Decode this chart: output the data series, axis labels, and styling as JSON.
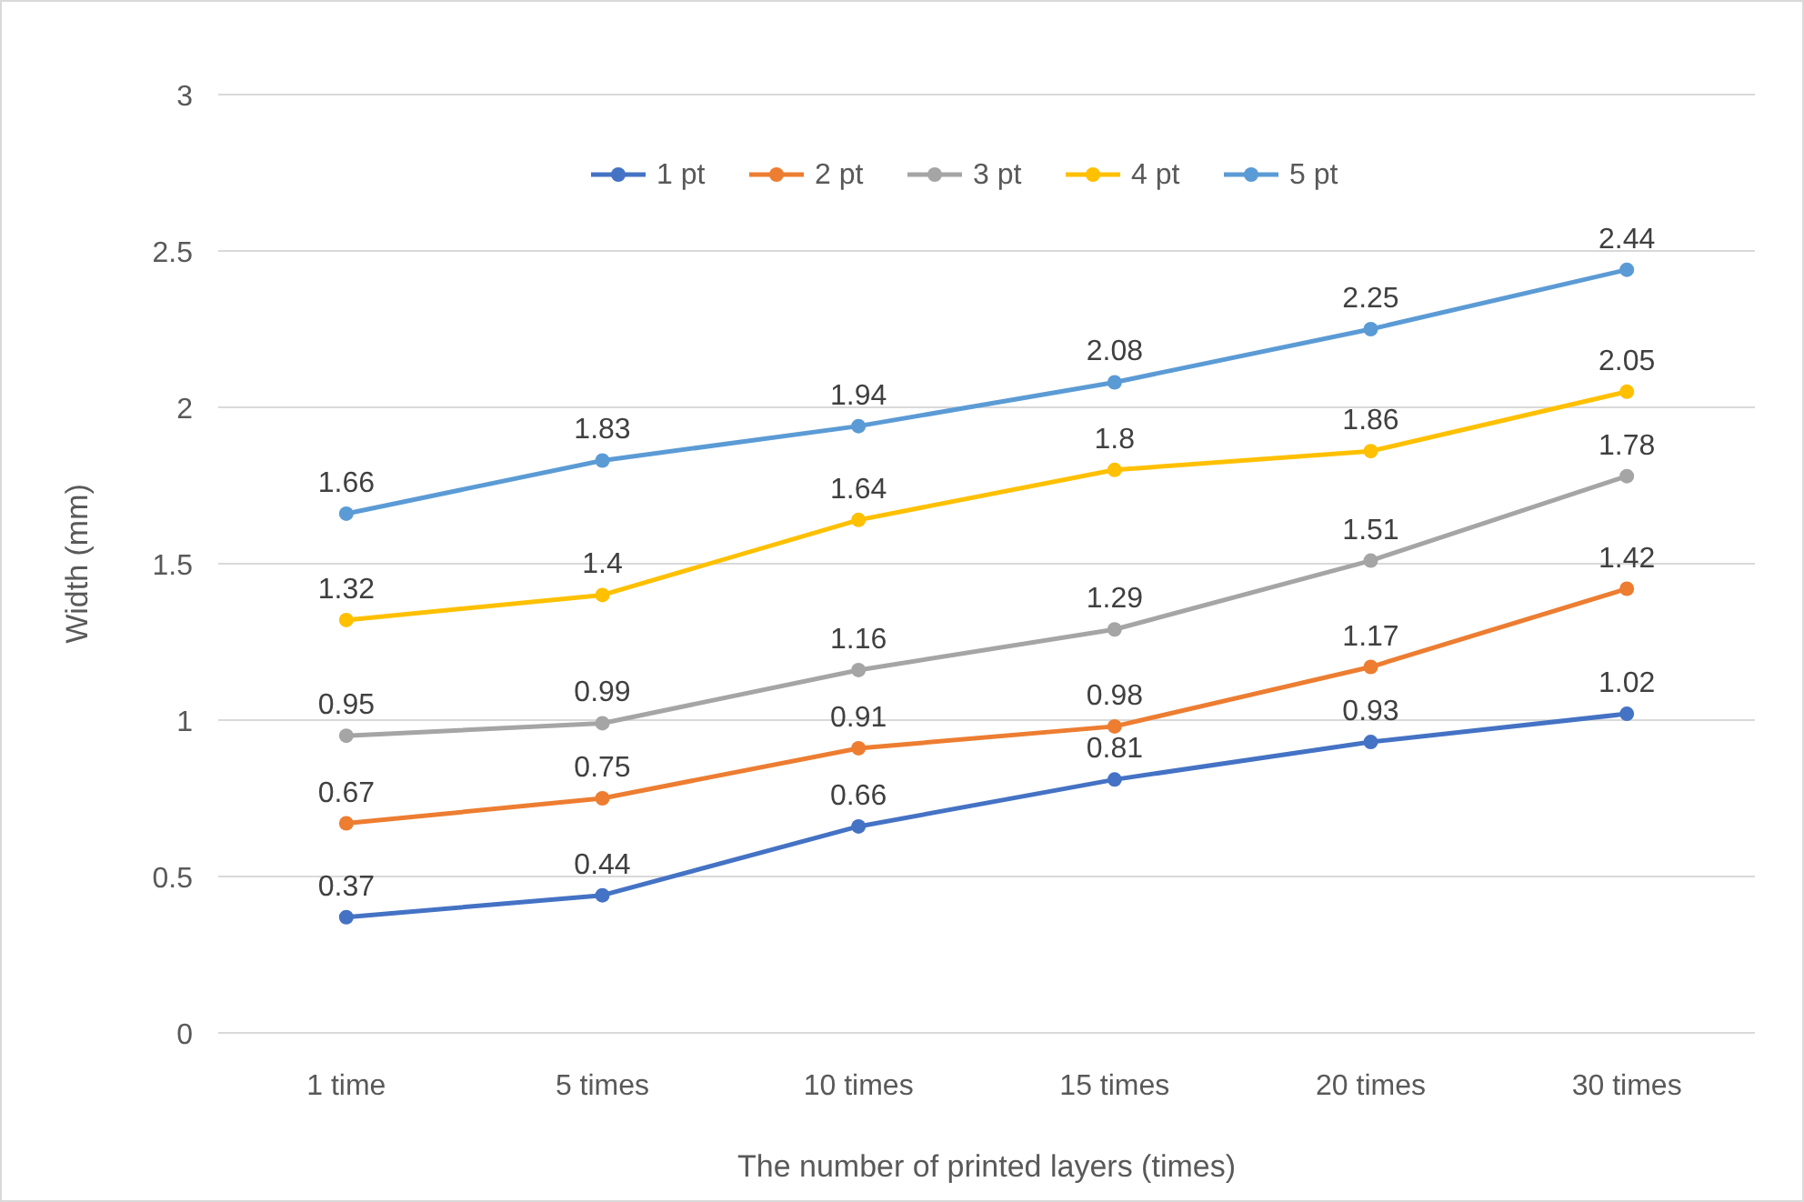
{
  "chart_data": {
    "type": "line",
    "xlabel": "The number of printed layers (times)",
    "ylabel": "Width (mm)",
    "categories": [
      "1 time",
      "5 times",
      "10 times",
      "15 times",
      "20 times",
      "30 times"
    ],
    "series": [
      {
        "name": "1 pt",
        "color": "#4472c4",
        "values": [
          0.37,
          0.44,
          0.66,
          0.81,
          0.93,
          1.02
        ]
      },
      {
        "name": "2 pt",
        "color": "#ed7d31",
        "values": [
          0.67,
          0.75,
          0.91,
          0.98,
          1.17,
          1.42
        ]
      },
      {
        "name": "3 pt",
        "color": "#a5a5a5",
        "values": [
          0.95,
          0.99,
          1.16,
          1.29,
          1.51,
          1.78
        ]
      },
      {
        "name": "4 pt",
        "color": "#ffc000",
        "values": [
          1.32,
          1.4,
          1.64,
          1.8,
          1.86,
          2.05
        ]
      },
      {
        "name": "5 pt",
        "color": "#5b9bd5",
        "values": [
          1.66,
          1.83,
          1.94,
          2.08,
          2.25,
          2.44
        ]
      }
    ],
    "ylim": [
      0,
      3
    ],
    "yticks": [
      0,
      0.5,
      1,
      1.5,
      2,
      2.5,
      3
    ],
    "grid": "y",
    "legend": "top",
    "marker": "circle",
    "line_style": "solid",
    "data_labels": true
  }
}
